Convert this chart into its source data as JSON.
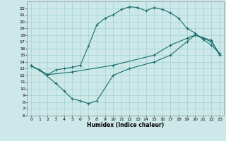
{
  "xlabel": "Humidex (Indice chaleur)",
  "bg_color": "#cce8e8",
  "grid_color": "#99cccc",
  "line_color": "#1a6e6e",
  "xlim": [
    -0.5,
    23.5
  ],
  "ylim": [
    6,
    23
  ],
  "xticks": [
    0,
    1,
    2,
    3,
    4,
    5,
    6,
    7,
    8,
    9,
    10,
    11,
    12,
    13,
    14,
    15,
    16,
    17,
    18,
    19,
    20,
    21,
    22,
    23
  ],
  "yticks": [
    6,
    7,
    8,
    9,
    10,
    11,
    12,
    13,
    14,
    15,
    16,
    17,
    18,
    19,
    20,
    21,
    22
  ],
  "line1_x": [
    0,
    1,
    2,
    3,
    4,
    5,
    6,
    7,
    8,
    9,
    10,
    11,
    12,
    13,
    14,
    15,
    16,
    17,
    18,
    19,
    20,
    21,
    22,
    23
  ],
  "line1_y": [
    13.4,
    12.8,
    12.1,
    12.8,
    13.0,
    13.2,
    13.5,
    16.4,
    19.5,
    20.5,
    21.0,
    21.8,
    22.2,
    22.1,
    21.6,
    22.1,
    21.8,
    21.3,
    20.5,
    19.0,
    18.3,
    17.3,
    16.5,
    15.2
  ],
  "line2_x": [
    0,
    2,
    5,
    10,
    15,
    17,
    19,
    20,
    21,
    22,
    23
  ],
  "line2_y": [
    13.4,
    12.1,
    12.5,
    13.5,
    15.0,
    16.5,
    17.5,
    18.0,
    17.5,
    17.0,
    15.2
  ],
  "line3_x": [
    0,
    1,
    3,
    4,
    5,
    6,
    7,
    8,
    10,
    12,
    15,
    17,
    19,
    20,
    22,
    23
  ],
  "line3_y": [
    13.4,
    12.8,
    10.8,
    9.7,
    8.5,
    8.2,
    7.8,
    8.2,
    12.0,
    13.0,
    14.0,
    15.0,
    17.0,
    18.0,
    17.2,
    15.0
  ]
}
